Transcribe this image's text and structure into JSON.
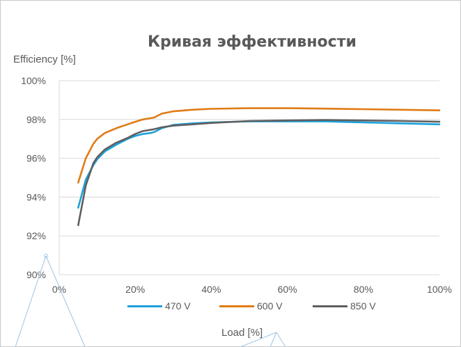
{
  "chart_data": {
    "type": "line",
    "title": "Кривая эффективности",
    "xlabel": "Load [%]",
    "ylabel": "Efficiency [%]",
    "xlim": [
      0,
      100
    ],
    "ylim": [
      90,
      100
    ],
    "x_ticks": [
      "0%",
      "20%",
      "40%",
      "60%",
      "80%",
      "100%"
    ],
    "y_ticks": [
      "90%",
      "92%",
      "94%",
      "96%",
      "98%",
      "100%"
    ],
    "grid": "horizontal",
    "legend_position": "bottom",
    "series": [
      {
        "name": "470 V",
        "color": "#1BA1DB",
        "x": [
          5,
          7,
          9,
          10,
          12,
          15,
          18,
          20,
          22,
          24,
          25,
          27,
          30,
          35,
          40,
          50,
          60,
          70,
          80,
          90,
          100
        ],
        "y": [
          93.45,
          94.9,
          95.65,
          95.95,
          96.35,
          96.7,
          97.0,
          97.15,
          97.25,
          97.3,
          97.35,
          97.55,
          97.72,
          97.8,
          97.85,
          97.9,
          97.9,
          97.9,
          97.85,
          97.8,
          97.75
        ]
      },
      {
        "name": "600 V",
        "color": "#E07B14",
        "x": [
          5,
          7,
          9,
          10,
          12,
          15,
          18,
          20,
          22,
          25,
          27,
          30,
          35,
          40,
          50,
          60,
          70,
          80,
          90,
          100
        ],
        "y": [
          94.75,
          96.0,
          96.75,
          97.0,
          97.3,
          97.55,
          97.75,
          97.88,
          98.0,
          98.1,
          98.3,
          98.42,
          98.5,
          98.55,
          98.58,
          98.58,
          98.56,
          98.53,
          98.5,
          98.47
        ]
      },
      {
        "name": "850 V",
        "color": "#5F5F5F",
        "x": [
          5,
          7,
          9,
          10,
          12,
          15,
          18,
          20,
          22,
          25,
          27,
          30,
          35,
          40,
          50,
          60,
          70,
          80,
          90,
          100
        ],
        "y": [
          92.55,
          94.6,
          95.75,
          96.05,
          96.45,
          96.8,
          97.05,
          97.25,
          97.4,
          97.5,
          97.6,
          97.68,
          97.75,
          97.82,
          97.92,
          97.95,
          97.97,
          97.95,
          97.92,
          97.88
        ]
      }
    ]
  }
}
